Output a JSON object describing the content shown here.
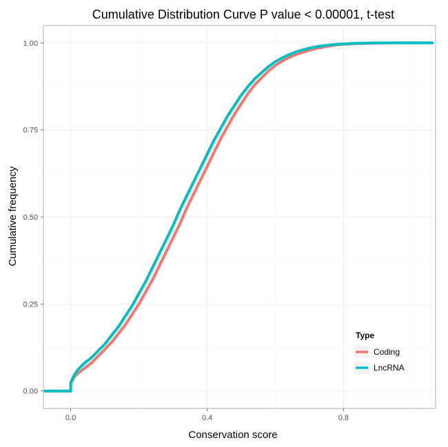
{
  "chart_data": {
    "type": "line",
    "title": "Cumulative Distribution Curve P value < 0.00001, t-test",
    "xlabel": "Conservation score",
    "ylabel": "Cumulative frequency",
    "xlim": [
      -0.08,
      1.07
    ],
    "ylim": [
      -0.05,
      1.05
    ],
    "x_ticks": [
      0.0,
      0.4,
      0.8
    ],
    "x_tick_labels": [
      "0.0",
      "0.4",
      "0.8"
    ],
    "y_ticks": [
      0.0,
      0.25,
      0.5,
      0.75,
      1.0
    ],
    "y_tick_labels": [
      "0.00",
      "0.25",
      "0.50",
      "0.75",
      "1.00"
    ],
    "grid": true,
    "legend": {
      "title": "Type",
      "position": "bottom-right"
    },
    "series": [
      {
        "name": "Coding",
        "color": "#F8766D",
        "x": [
          -0.075,
          0.0,
          0.0,
          0.01,
          0.02,
          0.04,
          0.06,
          0.08,
          0.1,
          0.12,
          0.14,
          0.16,
          0.18,
          0.2,
          0.22,
          0.24,
          0.26,
          0.28,
          0.3,
          0.32,
          0.34,
          0.36,
          0.38,
          0.4,
          0.42,
          0.44,
          0.46,
          0.48,
          0.5,
          0.52,
          0.54,
          0.56,
          0.58,
          0.6,
          0.62,
          0.64,
          0.66,
          0.68,
          0.7,
          0.72,
          0.74,
          0.76,
          0.78,
          0.8,
          0.84,
          0.9,
          0.96,
          1.02,
          1.06
        ],
        "y": [
          0.0,
          0.0,
          0.02,
          0.04,
          0.05,
          0.065,
          0.08,
          0.1,
          0.12,
          0.14,
          0.165,
          0.19,
          0.22,
          0.25,
          0.285,
          0.32,
          0.36,
          0.4,
          0.44,
          0.48,
          0.525,
          0.565,
          0.605,
          0.645,
          0.685,
          0.725,
          0.76,
          0.795,
          0.825,
          0.855,
          0.88,
          0.9,
          0.92,
          0.935,
          0.948,
          0.958,
          0.966,
          0.973,
          0.979,
          0.984,
          0.988,
          0.991,
          0.994,
          0.996,
          0.998,
          0.999,
          1.0,
          1.0,
          1.0
        ]
      },
      {
        "name": "LncRNA",
        "color": "#00BFC4",
        "x": [
          -0.075,
          0.0,
          0.0,
          0.01,
          0.02,
          0.04,
          0.06,
          0.08,
          0.1,
          0.12,
          0.14,
          0.16,
          0.18,
          0.2,
          0.22,
          0.24,
          0.26,
          0.28,
          0.3,
          0.32,
          0.34,
          0.36,
          0.38,
          0.4,
          0.42,
          0.44,
          0.46,
          0.48,
          0.5,
          0.52,
          0.54,
          0.56,
          0.58,
          0.6,
          0.62,
          0.64,
          0.66,
          0.68,
          0.7,
          0.72,
          0.74,
          0.76,
          0.78,
          0.8,
          0.84,
          0.9,
          0.96,
          1.02,
          1.06
        ],
        "y": [
          0.0,
          0.0,
          0.025,
          0.045,
          0.06,
          0.08,
          0.095,
          0.115,
          0.135,
          0.16,
          0.185,
          0.215,
          0.245,
          0.28,
          0.315,
          0.355,
          0.395,
          0.435,
          0.475,
          0.52,
          0.56,
          0.6,
          0.64,
          0.68,
          0.72,
          0.755,
          0.79,
          0.82,
          0.85,
          0.875,
          0.897,
          0.915,
          0.932,
          0.946,
          0.957,
          0.966,
          0.974,
          0.98,
          0.985,
          0.989,
          0.992,
          0.994,
          0.996,
          0.997,
          0.999,
          1.0,
          1.0,
          1.0,
          1.0
        ]
      }
    ]
  }
}
